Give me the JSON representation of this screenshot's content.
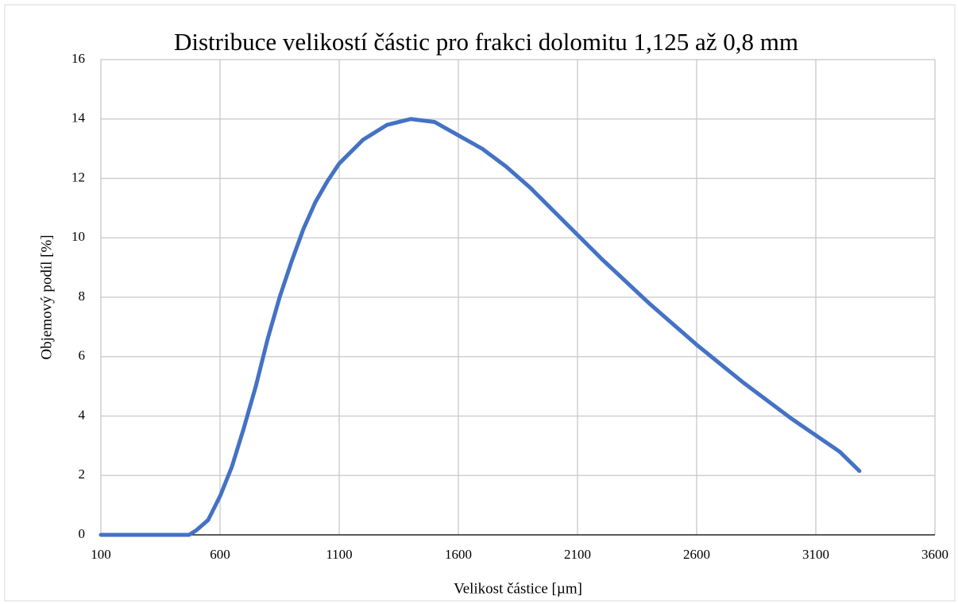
{
  "chart_data": {
    "type": "line",
    "title": "Distribuce velikostí částic pro frakci dolomitu 1,125 až 0,8 mm",
    "xlabel": "Velikost částice [µm]",
    "ylabel": "Objemový podíl [%]",
    "x": [
      100,
      200,
      300,
      400,
      470,
      500,
      550,
      600,
      650,
      700,
      750,
      800,
      850,
      900,
      950,
      1000,
      1050,
      1100,
      1200,
      1300,
      1400,
      1500,
      1600,
      1700,
      1800,
      1900,
      2000,
      2100,
      2200,
      2400,
      2600,
      2800,
      3000,
      3200,
      3283
    ],
    "series": [
      {
        "name": "Objemový podíl",
        "color": "#4472c4",
        "values": [
          0,
          0,
          0,
          0,
          0,
          0.15,
          0.5,
          1.3,
          2.3,
          3.6,
          5.0,
          6.6,
          8.0,
          9.2,
          10.3,
          11.2,
          11.9,
          12.5,
          13.3,
          13.8,
          14.0,
          13.9,
          13.45,
          13.0,
          12.4,
          11.7,
          10.9,
          10.1,
          9.3,
          7.8,
          6.4,
          5.1,
          3.9,
          2.8,
          2.15
        ]
      }
    ],
    "xlim": [
      100,
      3600
    ],
    "xticks": [
      100,
      600,
      1100,
      1600,
      2100,
      2600,
      3100,
      3600
    ],
    "ylim": [
      0,
      16
    ],
    "yticks": [
      0,
      2,
      4,
      6,
      8,
      10,
      12,
      14,
      16
    ],
    "grid": true
  }
}
